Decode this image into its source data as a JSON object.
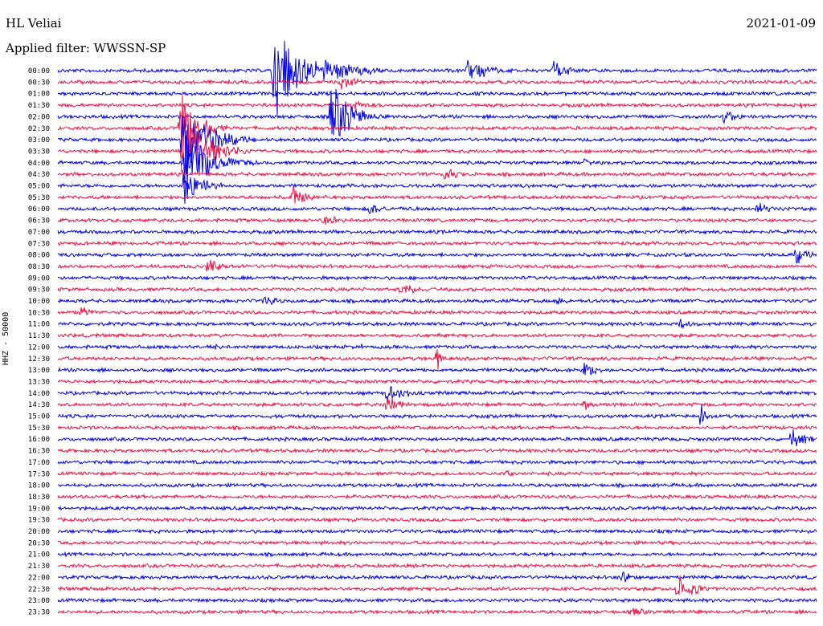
{
  "header": {
    "station": "HL Veliai",
    "date": "2021-01-09",
    "filter": "Applied filter: WWSSN-SP",
    "channel": "HHZ - 50000"
  },
  "chart_data": {
    "type": "line",
    "description_kind": "helicorder seismogram",
    "ylabel": "HHZ - 50000",
    "row_labels": [
      "00:00",
      "00:30",
      "01:00",
      "01:30",
      "02:00",
      "02:30",
      "03:00",
      "03:30",
      "04:00",
      "04:30",
      "05:00",
      "05:30",
      "06:00",
      "06:30",
      "07:00",
      "07:30",
      "08:00",
      "08:30",
      "09:00",
      "09:30",
      "10:00",
      "10:30",
      "11:00",
      "11:30",
      "12:00",
      "12:30",
      "13:00",
      "13:30",
      "14:00",
      "14:30",
      "15:00",
      "15:30",
      "16:00",
      "16:30",
      "17:00",
      "17:30",
      "18:00",
      "18:30",
      "19:00",
      "19:30",
      "20:00",
      "20:30",
      "21:00",
      "21:30",
      "22:00",
      "22:30",
      "23:00",
      "23:30"
    ],
    "row_minutes": 30,
    "colors": [
      "#0000ee",
      "#ee1144"
    ],
    "events": [
      {
        "row": 0,
        "minute": 8.5,
        "amplitude": 70,
        "duration": 3
      },
      {
        "row": 0,
        "minute": 10.5,
        "amplitude": 20,
        "duration": 4
      },
      {
        "row": 0,
        "minute": 16.2,
        "amplitude": 16,
        "duration": 3
      },
      {
        "row": 0,
        "minute": 19.6,
        "amplitude": 14,
        "duration": 2
      },
      {
        "row": 1,
        "minute": 11.2,
        "amplitude": 12,
        "duration": 2
      },
      {
        "row": 3,
        "minute": 11.6,
        "amplitude": 10,
        "duration": 2
      },
      {
        "row": 3,
        "minute": 29.3,
        "amplitude": 7,
        "duration": 1
      },
      {
        "row": 4,
        "minute": 10.8,
        "amplitude": 55,
        "duration": 2
      },
      {
        "row": 4,
        "minute": 26.3,
        "amplitude": 12,
        "duration": 2
      },
      {
        "row": 5,
        "minute": 4.8,
        "amplitude": 75,
        "duration": 2
      },
      {
        "row": 6,
        "minute": 4.9,
        "amplitude": 60,
        "duration": 3
      },
      {
        "row": 7,
        "minute": 4.9,
        "amplitude": 60,
        "duration": 3
      },
      {
        "row": 8,
        "minute": 5.0,
        "amplitude": 50,
        "duration": 3
      },
      {
        "row": 8,
        "minute": 20.8,
        "amplitude": 7,
        "duration": 1
      },
      {
        "row": 9,
        "minute": 15.3,
        "amplitude": 12,
        "duration": 1.5
      },
      {
        "row": 10,
        "minute": 5.0,
        "amplitude": 35,
        "duration": 2
      },
      {
        "row": 11,
        "minute": 9.3,
        "amplitude": 18,
        "duration": 1.5
      },
      {
        "row": 12,
        "minute": 12.3,
        "amplitude": 10,
        "duration": 2
      },
      {
        "row": 12,
        "minute": 27.6,
        "amplitude": 12,
        "duration": 1.5
      },
      {
        "row": 13,
        "minute": 10.5,
        "amplitude": 8,
        "duration": 3
      },
      {
        "row": 16,
        "minute": 29.2,
        "amplitude": 14,
        "duration": 1.5
      },
      {
        "row": 17,
        "minute": 5.9,
        "amplitude": 14,
        "duration": 1.5
      },
      {
        "row": 19,
        "minute": 13.5,
        "amplitude": 12,
        "duration": 2
      },
      {
        "row": 20,
        "minute": 8.1,
        "amplitude": 9,
        "duration": 2
      },
      {
        "row": 20,
        "minute": 19.7,
        "amplitude": 6,
        "duration": 2
      },
      {
        "row": 21,
        "minute": 0.9,
        "amplitude": 10,
        "duration": 1.5
      },
      {
        "row": 22,
        "minute": 24.6,
        "amplitude": 8,
        "duration": 1.5
      },
      {
        "row": 24,
        "minute": 6.2,
        "amplitude": 12,
        "duration": 0.5
      },
      {
        "row": 24,
        "minute": 12.0,
        "amplitude": 6,
        "duration": 0.5
      },
      {
        "row": 25,
        "minute": 15.0,
        "amplitude": 20,
        "duration": 0.4
      },
      {
        "row": 26,
        "minute": 20.8,
        "amplitude": 14,
        "duration": 1.5
      },
      {
        "row": 28,
        "minute": 13.0,
        "amplitude": 18,
        "duration": 2
      },
      {
        "row": 29,
        "minute": 13.0,
        "amplitude": 16,
        "duration": 1.5
      },
      {
        "row": 29,
        "minute": 20.8,
        "amplitude": 10,
        "duration": 1
      },
      {
        "row": 30,
        "minute": 25.4,
        "amplitude": 30,
        "duration": 0.5
      },
      {
        "row": 32,
        "minute": 29.0,
        "amplitude": 14,
        "duration": 2
      },
      {
        "row": 35,
        "minute": 17.7,
        "amplitude": 10,
        "duration": 0.8
      },
      {
        "row": 44,
        "minute": 22.3,
        "amplitude": 10,
        "duration": 1.5
      },
      {
        "row": 45,
        "minute": 24.5,
        "amplitude": 22,
        "duration": 2
      },
      {
        "row": 47,
        "minute": 22.8,
        "amplitude": 8,
        "duration": 1.5
      }
    ]
  }
}
